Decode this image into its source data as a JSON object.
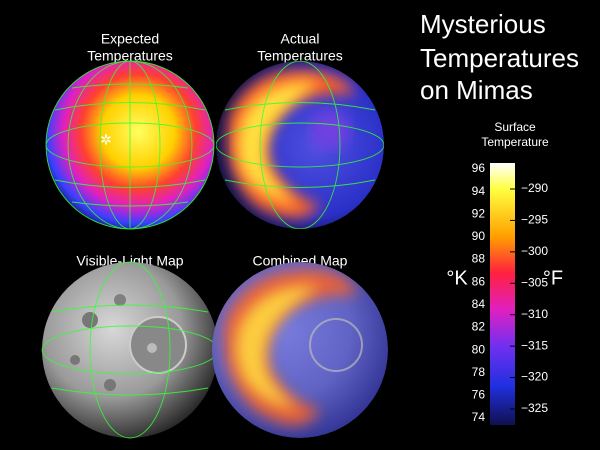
{
  "title": [
    "Mysterious",
    "Temperatures",
    "on Mimas"
  ],
  "panels": [
    {
      "label": [
        "Expected",
        "Temperatures"
      ]
    },
    {
      "label": [
        "Actual",
        "Temperatures"
      ]
    },
    {
      "label": [
        "Visible-Light Map"
      ]
    },
    {
      "label": [
        "Combined Map"
      ]
    }
  ],
  "colorbar": {
    "title": [
      "Surface",
      "Temperature"
    ],
    "kelvin_unit": "°K",
    "kelvin_ticks": [
      "96",
      "94",
      "92",
      "90",
      "88",
      "86",
      "84",
      "82",
      "80",
      "78",
      "76",
      "74"
    ],
    "fahrenheit_unit": "°F",
    "fahrenheit_ticks": [
      "−290",
      "−295",
      "−300",
      "−305",
      "−310",
      "−315",
      "−320",
      "−325"
    ]
  }
}
